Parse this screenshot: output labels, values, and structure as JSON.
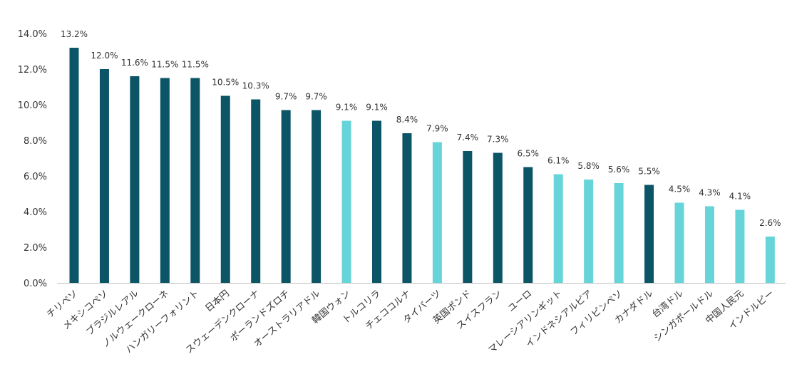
{
  "chart_data": {
    "type": "bar",
    "categories": [
      "チリペソ",
      "メキシコペソ",
      "ブラジルレアル",
      "ノルウェークローネ",
      "ハンガリーフォリント",
      "日本円",
      "スウェーデンクローナ",
      "ポーランドズロチ",
      "オーストラリアドル",
      "韓国ウォン",
      "トルコリラ",
      "チェココルナ",
      "タイバーツ",
      "英国ポンド",
      "スイスフラン",
      "ユーロ",
      "マレーシアリンギット",
      "インドネシアルピア",
      "フィリピンペソ",
      "カナダドル",
      "台湾ドル",
      "シンガポールドル",
      "中国人民元",
      "インドルピー"
    ],
    "values": [
      13.2,
      12.0,
      11.6,
      11.5,
      11.5,
      10.5,
      10.3,
      9.7,
      9.7,
      9.1,
      9.1,
      8.4,
      7.9,
      7.4,
      7.3,
      6.5,
      6.1,
      5.8,
      5.6,
      5.5,
      4.5,
      4.3,
      4.1,
      2.6
    ],
    "data_labels": [
      "13.2%",
      "12.0%",
      "11.6%",
      "11.5%",
      "11.5%",
      "10.5%",
      "10.3%",
      "9.7%",
      "9.7%",
      "9.1%",
      "9.1%",
      "8.4%",
      "7.9%",
      "7.4%",
      "7.3%",
      "6.5%",
      "6.1%",
      "5.8%",
      "5.6%",
      "5.5%",
      "4.5%",
      "4.3%",
      "4.1%",
      "2.6%"
    ],
    "bar_groups": [
      "dark",
      "dark",
      "dark",
      "dark",
      "dark",
      "dark",
      "dark",
      "dark",
      "dark",
      "light",
      "dark",
      "dark",
      "light",
      "dark",
      "dark",
      "dark",
      "light",
      "light",
      "light",
      "dark",
      "light",
      "light",
      "light",
      "light"
    ],
    "colors": {
      "dark": "#0b5566",
      "light": "#67d4d9"
    },
    "y_ticks": [
      "0.0%",
      "2.0%",
      "4.0%",
      "6.0%",
      "8.0%",
      "10.0%",
      "12.0%",
      "14.0%"
    ],
    "ylim": [
      0,
      14
    ],
    "grid": false,
    "title": "",
    "xlabel": "",
    "ylabel": ""
  }
}
